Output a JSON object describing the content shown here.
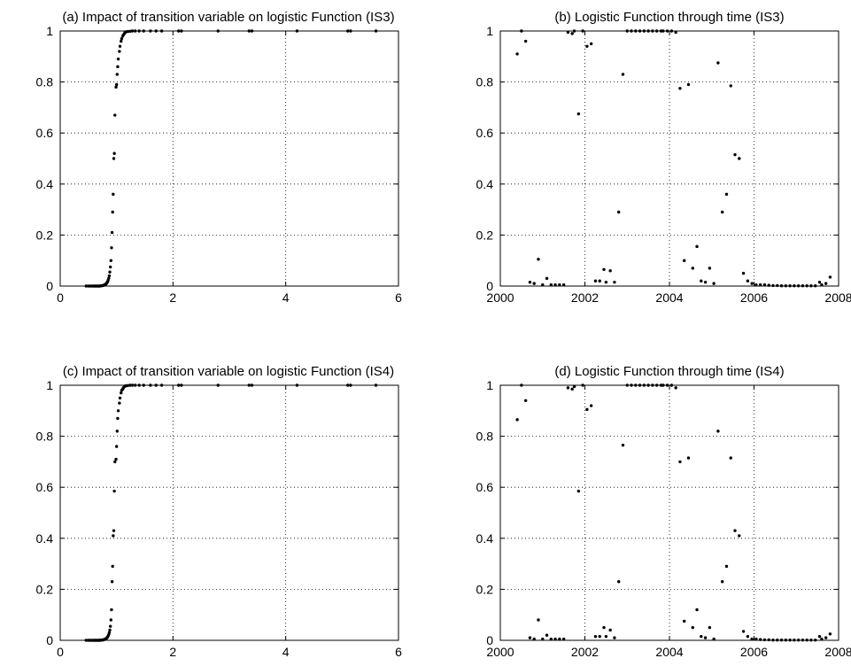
{
  "chart_data": [
    {
      "type": "scatter",
      "title": "(a) Impact of transition variable on logistic Function (IS3)",
      "xlabel": "",
      "ylabel": "",
      "xlim": [
        0,
        6
      ],
      "ylim": [
        0,
        1
      ],
      "xticks": [
        0,
        2,
        4,
        6
      ],
      "yticks": [
        0,
        0.2,
        0.4,
        0.6,
        0.8,
        1
      ],
      "xtick_labels": [
        "0",
        "2",
        "4",
        "6"
      ],
      "ytick_labels": [
        "0",
        "0.2",
        "0.4",
        "0.6",
        "0.8",
        "1"
      ],
      "grid": true,
      "x": [
        0.46,
        0.5,
        0.53,
        0.56,
        0.59,
        0.61,
        0.63,
        0.65,
        0.67,
        0.69,
        0.7,
        0.72,
        0.73,
        0.75,
        0.76,
        0.77,
        0.78,
        0.79,
        0.8,
        0.81,
        0.82,
        0.83,
        0.84,
        0.85,
        0.86,
        0.87,
        0.88,
        0.89,
        0.9,
        0.91,
        0.92,
        0.93,
        0.94,
        0.95,
        0.96,
        0.97,
        0.99,
        1.0,
        1.01,
        1.02,
        1.03,
        1.05,
        1.06,
        1.08,
        1.09,
        1.11,
        1.12,
        1.14,
        1.15,
        1.17,
        1.2,
        1.24,
        1.28,
        1.33,
        1.4,
        1.48,
        1.6,
        1.7,
        1.8,
        2.1,
        2.15,
        2.8,
        3.35,
        3.4,
        4.2,
        5.1,
        5.15,
        5.6
      ],
      "y": [
        0,
        0,
        0,
        0,
        0,
        0,
        0,
        0,
        0,
        0,
        0,
        0.001,
        0.001,
        0.002,
        0.002,
        0.003,
        0.004,
        0.005,
        0.006,
        0.008,
        0.01,
        0.013,
        0.017,
        0.023,
        0.03,
        0.04,
        0.055,
        0.075,
        0.1,
        0.15,
        0.21,
        0.29,
        0.36,
        0.5,
        0.52,
        0.67,
        0.78,
        0.79,
        0.83,
        0.86,
        0.89,
        0.92,
        0.94,
        0.96,
        0.97,
        0.98,
        0.985,
        0.99,
        0.995,
        0.997,
        0.998,
        0.999,
        1,
        1,
        1,
        1,
        1,
        1,
        1,
        1,
        1,
        1,
        1,
        1,
        1,
        1,
        1,
        1
      ]
    },
    {
      "type": "scatter",
      "title": "(b) Logistic Function through time (IS3)",
      "xlabel": "",
      "ylabel": "",
      "xlim": [
        2000,
        2008
      ],
      "ylim": [
        0,
        1
      ],
      "xticks": [
        2000,
        2002,
        2004,
        2006,
        2008
      ],
      "yticks": [
        0,
        0.2,
        0.4,
        0.6,
        0.8,
        1
      ],
      "xtick_labels": [
        "2000",
        "2002",
        "2004",
        "2006",
        "2008"
      ],
      "ytick_labels": [
        "0",
        "0.2",
        "0.4",
        "0.6",
        "0.8",
        "1"
      ],
      "grid": true,
      "x": [
        2000.4,
        2000.5,
        2000.6,
        2000.7,
        2000.8,
        2000.9,
        2001.0,
        2001.1,
        2001.2,
        2001.3,
        2001.4,
        2001.5,
        2001.6,
        2001.7,
        2001.75,
        2001.85,
        2001.95,
        2002.05,
        2002.15,
        2002.25,
        2002.35,
        2002.45,
        2002.5,
        2002.6,
        2002.7,
        2002.8,
        2002.9,
        2003.0,
        2003.1,
        2003.2,
        2003.3,
        2003.4,
        2003.5,
        2003.6,
        2003.7,
        2003.8,
        2003.85,
        2003.95,
        2004.05,
        2004.15,
        2004.25,
        2004.35,
        2004.45,
        2004.55,
        2004.65,
        2004.75,
        2004.85,
        2004.95,
        2005.05,
        2005.15,
        2005.25,
        2005.35,
        2005.45,
        2005.55,
        2005.65,
        2005.75,
        2005.85,
        2005.95,
        2006.05,
        2006.15,
        2006.25,
        2006.35,
        2006.45,
        2006.55,
        2006.65,
        2006.75,
        2006.85,
        2006.95,
        2007.05,
        2007.15,
        2007.25,
        2007.35,
        2007.45,
        2007.55
      ],
      "y": [
        0.91,
        1,
        0.96,
        0.015,
        0.01,
        0.105,
        0.005,
        0.03,
        0.005,
        0.005,
        0.005,
        0.005,
        0.995,
        0.99,
        1,
        0.675,
        1,
        0.94,
        0.95,
        0.02,
        0.02,
        0.065,
        0.015,
        0.06,
        0.015,
        0.29,
        0.83,
        1,
        1,
        1,
        1,
        1,
        1,
        1,
        1,
        1,
        1,
        1,
        1,
        0.995,
        0.775,
        0.1,
        0.79,
        0.07,
        0.155,
        0.02,
        0.015,
        0.07,
        0.01,
        0.875,
        0.29,
        0.36,
        0.785,
        0.515,
        0.5,
        0.05,
        0.02,
        0.01,
        0.005,
        0.005,
        0.005,
        0.003,
        0.002,
        0.002,
        0.001,
        0.001,
        0.001,
        0.001,
        0.001,
        0.001,
        0.001,
        0.001,
        0.001,
        0.015
      ],
      "x_extra": [
        2007.6,
        2007.7,
        2007.8
      ],
      "y_extra": [
        0.005,
        0.01,
        0.035
      ]
    },
    {
      "type": "scatter",
      "title": "(c) Impact of transition variable on logistic Function (IS4)",
      "xlabel": "",
      "ylabel": "",
      "xlim": [
        0,
        6
      ],
      "ylim": [
        0,
        1
      ],
      "xticks": [
        0,
        2,
        4,
        6
      ],
      "yticks": [
        0,
        0.2,
        0.4,
        0.6,
        0.8,
        1
      ],
      "xtick_labels": [
        "0",
        "2",
        "4",
        "6"
      ],
      "ytick_labels": [
        "0",
        "0.2",
        "0.4",
        "0.6",
        "0.8",
        "1"
      ],
      "grid": true,
      "x": [
        0.46,
        0.5,
        0.53,
        0.56,
        0.59,
        0.61,
        0.63,
        0.65,
        0.67,
        0.69,
        0.7,
        0.72,
        0.73,
        0.75,
        0.76,
        0.77,
        0.78,
        0.79,
        0.8,
        0.81,
        0.82,
        0.83,
        0.84,
        0.85,
        0.86,
        0.87,
        0.88,
        0.89,
        0.9,
        0.91,
        0.92,
        0.93,
        0.94,
        0.95,
        0.96,
        0.97,
        0.99,
        1.0,
        1.01,
        1.02,
        1.03,
        1.05,
        1.06,
        1.08,
        1.09,
        1.11,
        1.12,
        1.14,
        1.15,
        1.17,
        1.2,
        1.24,
        1.28,
        1.33,
        1.4,
        1.48,
        1.6,
        1.7,
        1.8,
        2.1,
        2.15,
        2.8,
        3.35,
        3.4,
        4.2,
        5.1,
        5.15,
        5.6
      ],
      "y": [
        0,
        0,
        0,
        0,
        0,
        0,
        0,
        0,
        0,
        0,
        0,
        0.001,
        0.001,
        0.001,
        0.002,
        0.002,
        0.003,
        0.004,
        0.005,
        0.006,
        0.008,
        0.01,
        0.013,
        0.017,
        0.022,
        0.03,
        0.04,
        0.055,
        0.08,
        0.12,
        0.23,
        0.29,
        0.41,
        0.43,
        0.585,
        0.7,
        0.71,
        0.76,
        0.82,
        0.87,
        0.9,
        0.93,
        0.95,
        0.97,
        0.98,
        0.985,
        0.99,
        0.995,
        0.997,
        0.998,
        0.999,
        1,
        1,
        1,
        1,
        1,
        1,
        1,
        1,
        1,
        1,
        1,
        1,
        1,
        1,
        1,
        1,
        1
      ]
    },
    {
      "type": "scatter",
      "title": "(d) Logistic Function through time (IS4)",
      "xlabel": "",
      "ylabel": "",
      "xlim": [
        2000,
        2008
      ],
      "ylim": [
        0,
        1
      ],
      "xticks": [
        2000,
        2002,
        2004,
        2006,
        2008
      ],
      "yticks": [
        0,
        0.2,
        0.4,
        0.6,
        0.8,
        1
      ],
      "xtick_labels": [
        "2000",
        "2002",
        "2004",
        "2006",
        "2008"
      ],
      "ytick_labels": [
        "0",
        "0.2",
        "0.4",
        "0.6",
        "0.8",
        "1"
      ],
      "grid": true,
      "x": [
        2000.4,
        2000.5,
        2000.6,
        2000.7,
        2000.8,
        2000.9,
        2001.0,
        2001.1,
        2001.2,
        2001.3,
        2001.4,
        2001.5,
        2001.6,
        2001.7,
        2001.75,
        2001.85,
        2001.95,
        2002.05,
        2002.15,
        2002.25,
        2002.35,
        2002.45,
        2002.5,
        2002.6,
        2002.7,
        2002.8,
        2002.9,
        2003.0,
        2003.1,
        2003.2,
        2003.3,
        2003.4,
        2003.5,
        2003.6,
        2003.7,
        2003.8,
        2003.85,
        2003.95,
        2004.05,
        2004.15,
        2004.25,
        2004.35,
        2004.45,
        2004.55,
        2004.65,
        2004.75,
        2004.85,
        2004.95,
        2005.05,
        2005.15,
        2005.25,
        2005.35,
        2005.45,
        2005.55,
        2005.65,
        2005.75,
        2005.85,
        2005.95,
        2006.05,
        2006.15,
        2006.25,
        2006.35,
        2006.45,
        2006.55,
        2006.65,
        2006.75,
        2006.85,
        2006.95,
        2007.05,
        2007.15,
        2007.25,
        2007.35,
        2007.45,
        2007.55,
        2007.6,
        2007.7,
        2007.8
      ],
      "y": [
        0.865,
        1,
        0.94,
        0.01,
        0.005,
        0.08,
        0.005,
        0.02,
        0.005,
        0.005,
        0.005,
        0.005,
        0.99,
        0.985,
        0.995,
        0.585,
        1,
        0.905,
        0.92,
        0.015,
        0.015,
        0.05,
        0.015,
        0.04,
        0.01,
        0.23,
        0.765,
        1,
        1,
        1,
        1,
        1,
        1,
        1,
        1,
        1,
        1,
        1,
        1,
        0.99,
        0.7,
        0.075,
        0.715,
        0.05,
        0.12,
        0.015,
        0.01,
        0.05,
        0.005,
        0.82,
        0.23,
        0.29,
        0.715,
        0.43,
        0.41,
        0.035,
        0.015,
        0.005,
        0.005,
        0.003,
        0.002,
        0.002,
        0.001,
        0.001,
        0.001,
        0.001,
        0.001,
        0.001,
        0.001,
        0.001,
        0.001,
        0.001,
        0.001,
        0.015,
        0.005,
        0.01,
        0.025
      ]
    }
  ]
}
